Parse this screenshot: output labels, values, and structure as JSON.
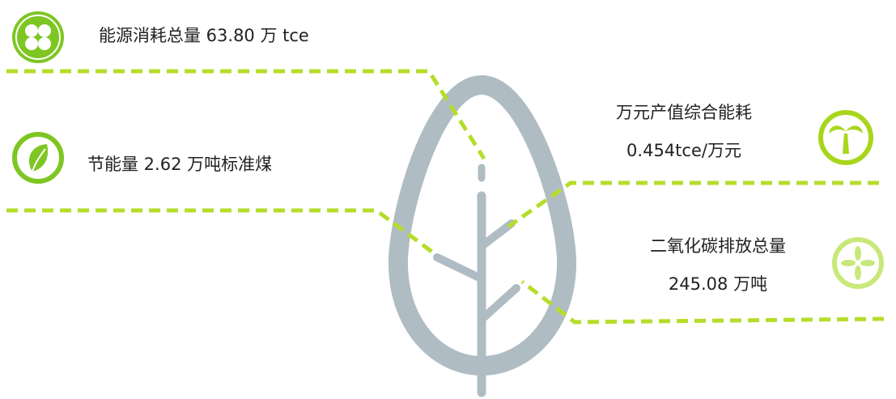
{
  "left_items": [
    {
      "label": "能源消耗总量 63.80 万 tce"
    },
    {
      "label": "节能量 2.62 万吨标准煤"
    }
  ],
  "right_items": [
    {
      "title": "万元产值综合能耗",
      "value": "0.454tce/万元"
    },
    {
      "title": "二氧化碳排放总量",
      "value": "245.08 万吨"
    }
  ]
}
